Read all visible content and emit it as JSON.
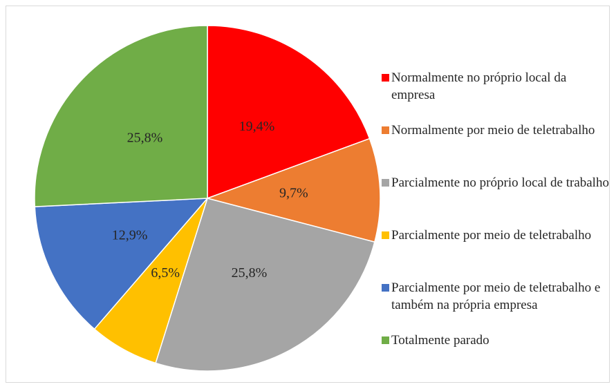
{
  "chart_data": {
    "type": "pie",
    "categories": [
      "Normalmente no próprio local da empresa",
      "Normalmente por meio de teletrabalho",
      "Parcialmente no próprio local de trabalho",
      "Parcialmente por meio de teletrabalho",
      "Parcialmente por meio de teletrabalho e também na própria empresa",
      "Totalmente parado"
    ],
    "values": [
      19.4,
      9.7,
      25.8,
      6.5,
      12.9,
      25.8
    ],
    "value_labels": [
      "19,4%",
      "9,7%",
      "25,8%",
      "6,5%",
      "12,9%",
      "25,8%"
    ],
    "colors": [
      "#ff0000",
      "#ed7d31",
      "#a5a5a5",
      "#ffc000",
      "#4472c4",
      "#70ad47"
    ],
    "legend": "right"
  }
}
